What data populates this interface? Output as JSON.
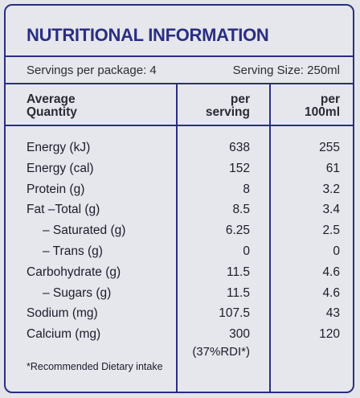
{
  "title": "NUTRITIONAL INFORMATION",
  "servings": {
    "per_package": "Servings per package: 4",
    "size": "Serving Size: 250ml"
  },
  "headers": {
    "col0_line1": "Average",
    "col0_line2": "Quantity",
    "col1_line1": "per",
    "col1_line2": "serving",
    "col2_line1": "per",
    "col2_line2": "100ml"
  },
  "rows": [
    {
      "name": "Energy (kJ)",
      "per_serving": "638",
      "per_100ml": "255"
    },
    {
      "name": "Energy (cal)",
      "per_serving": "152",
      "per_100ml": "61"
    },
    {
      "name": "Protein (g)",
      "per_serving": "8",
      "per_100ml": "3.2"
    },
    {
      "name": "Fat –Total (g)",
      "per_serving": "8.5",
      "per_100ml": "3.4"
    },
    {
      "name": "–  Saturated (g)",
      "per_serving": "6.25",
      "per_100ml": "2.5"
    },
    {
      "name": "–  Trans (g)",
      "per_serving": "0",
      "per_100ml": "0"
    },
    {
      "name": "Carbohydrate (g)",
      "per_serving": "11.5",
      "per_100ml": "4.6"
    },
    {
      "name": "–  Sugars (g)",
      "per_serving": "11.5",
      "per_100ml": "4.6"
    },
    {
      "name": "Sodium (mg)",
      "per_serving": "107.5",
      "per_100ml": "43"
    },
    {
      "name": "Calcium (mg)",
      "per_serving": "300",
      "per_100ml": "120"
    }
  ],
  "rdi_note": "(37%RDI*)",
  "footnote": "*Recommended Dietary intake",
  "colors": {
    "accent": "#2a2e82",
    "background": "#e6e7ec"
  }
}
